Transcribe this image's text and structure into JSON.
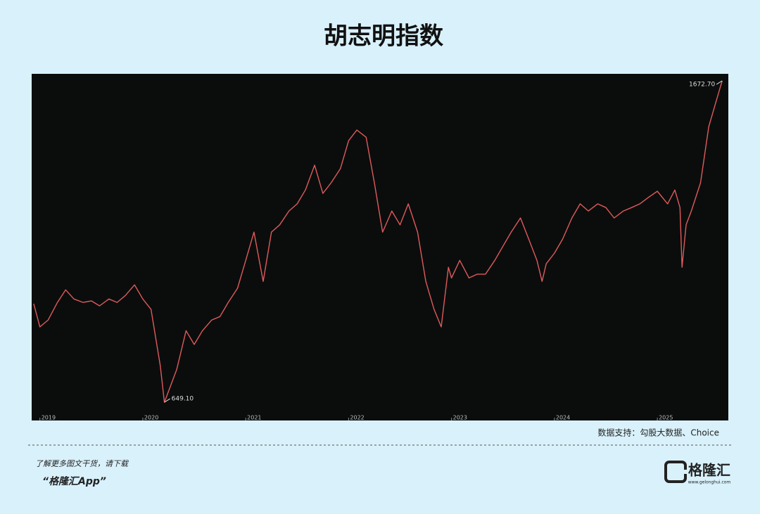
{
  "chart_data": {
    "type": "line",
    "title": "胡志明指数",
    "x": [
      2018.94,
      2019.0,
      2019.08,
      2019.17,
      2019.25,
      2019.33,
      2019.42,
      2019.5,
      2019.58,
      2019.67,
      2019.75,
      2019.83,
      2019.92,
      2020.0,
      2020.08,
      2020.17,
      2020.21,
      2020.33,
      2020.42,
      2020.5,
      2020.58,
      2020.67,
      2020.75,
      2020.83,
      2020.92,
      2021.0,
      2021.08,
      2021.17,
      2021.25,
      2021.33,
      2021.42,
      2021.5,
      2021.58,
      2021.67,
      2021.75,
      2021.83,
      2021.92,
      2022.0,
      2022.08,
      2022.17,
      2022.25,
      2022.33,
      2022.42,
      2022.5,
      2022.58,
      2022.67,
      2022.75,
      2022.83,
      2022.9,
      2022.97,
      2023.0,
      2023.08,
      2023.17,
      2023.25,
      2023.33,
      2023.42,
      2023.5,
      2023.58,
      2023.67,
      2023.75,
      2023.83,
      2023.88,
      2023.92,
      2024.0,
      2024.08,
      2024.17,
      2024.25,
      2024.33,
      2024.42,
      2024.5,
      2024.58,
      2024.67,
      2024.75,
      2024.83,
      2024.92,
      2025.0,
      2025.1,
      2025.17,
      2025.22,
      2025.24,
      2025.28,
      2025.33,
      2025.42,
      2025.5,
      2025.58,
      2025.63
    ],
    "series": [
      {
        "color": "#e05a5a",
        "values": [
          963,
          889,
          911,
          967,
          1007,
          978,
          967,
          972,
          956,
          978,
          967,
          989,
          1023,
          978,
          945,
          765,
          649.1,
          754,
          877,
          833,
          877,
          911,
          922,
          967,
          1012,
          1101,
          1191,
          1034,
          1191,
          1214,
          1258,
          1281,
          1325,
          1404,
          1314,
          1348,
          1393,
          1482,
          1516,
          1493,
          1348,
          1191,
          1258,
          1214,
          1281,
          1191,
          1034,
          945,
          889,
          1079,
          1045,
          1101,
          1045,
          1057,
          1057,
          1101,
          1146,
          1191,
          1236,
          1169,
          1101,
          1034,
          1090,
          1124,
          1169,
          1236,
          1281,
          1258,
          1281,
          1269,
          1236,
          1258,
          1269,
          1281,
          1303,
          1321,
          1281,
          1325,
          1269,
          1079,
          1214,
          1258,
          1348,
          1527,
          1617,
          1672.7
        ]
      }
    ],
    "xlim": [
      2018.92,
      2025.69
    ],
    "xticks": [
      2019,
      2020,
      2021,
      2022,
      2023,
      2024,
      2025
    ],
    "ylim": [
      591,
      1695
    ],
    "annotations": [
      {
        "x": 2020.21,
        "value": 649.1,
        "label": "649.10"
      },
      {
        "x": 2025.63,
        "value": 1672.7,
        "label": "1672.70"
      }
    ],
    "source": "数据支持：勾股大数据、Choice"
  },
  "footer": {
    "prompt": "了解更多图文干货，请下载",
    "app": "“格隆汇App”",
    "brand": "格隆汇",
    "site": "www.gelonghui.com"
  }
}
